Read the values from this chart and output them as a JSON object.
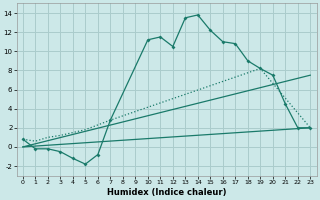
{
  "xlabel": "Humidex (Indice chaleur)",
  "background_color": "#cce8e8",
  "grid_color": "#aacccc",
  "line_color": "#1a7a6a",
  "xlim": [
    -0.5,
    23.5
  ],
  "ylim": [
    -3,
    15
  ],
  "xticks": [
    0,
    1,
    2,
    3,
    4,
    5,
    6,
    7,
    8,
    9,
    10,
    11,
    12,
    13,
    14,
    15,
    16,
    17,
    18,
    19,
    20,
    21,
    22,
    23
  ],
  "yticks": [
    -2,
    0,
    2,
    4,
    6,
    8,
    10,
    12,
    14
  ],
  "series1_x": [
    0,
    1,
    2,
    3,
    4,
    5,
    6,
    7,
    10,
    11,
    12,
    13,
    14,
    15,
    16,
    17,
    18,
    19,
    20,
    21,
    22,
    23
  ],
  "series1_y": [
    0.8,
    -0.2,
    -0.2,
    -0.5,
    -1.2,
    -1.8,
    -0.8,
    2.8,
    11.2,
    11.5,
    10.5,
    13.5,
    13.8,
    12.2,
    11.0,
    10.8,
    9.0,
    8.2,
    7.5,
    4.5,
    2.0,
    2.0
  ],
  "series2_x": [
    0,
    1,
    2,
    3,
    4,
    5,
    6,
    7,
    19,
    23
  ],
  "series2_y": [
    0.8,
    0.6,
    1.0,
    1.2,
    1.5,
    1.8,
    2.3,
    2.8,
    8.2,
    2.0
  ],
  "series3_x": [
    0,
    23
  ],
  "series3_y": [
    0.0,
    2.0
  ],
  "series4_x": [
    0,
    23
  ],
  "series4_y": [
    0.0,
    7.5
  ]
}
